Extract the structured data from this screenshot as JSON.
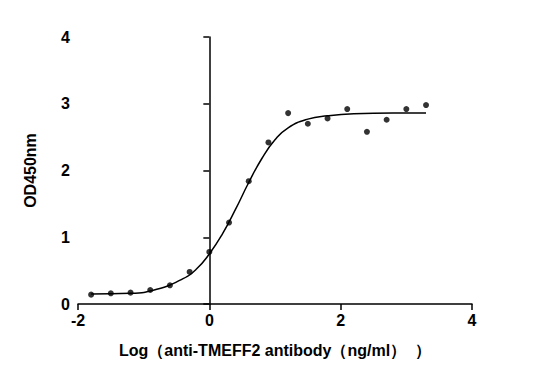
{
  "chart_data": {
    "type": "scatter",
    "x_label": "Log（anti-TMEFF2 antibody（ng/ml）  ）",
    "y_label": "OD450nm",
    "xlim": [
      -2,
      4
    ],
    "xticks": [
      -2,
      0,
      2,
      4
    ],
    "ylim": [
      0,
      4
    ],
    "yticks": [
      0,
      1,
      2,
      3,
      4
    ],
    "grid": false,
    "series": [
      {
        "type": "scatter",
        "color": "#000000",
        "marker": "circle",
        "x": [
          -1.8,
          -1.5,
          -1.2,
          -0.9,
          -0.6,
          -0.3,
          0.0,
          0.3,
          0.6,
          0.9,
          1.2,
          1.5,
          1.8,
          2.1,
          2.4,
          2.7,
          3.0,
          3.3
        ],
        "values": [
          0.14,
          0.16,
          0.17,
          0.21,
          0.28,
          0.48,
          0.78,
          1.22,
          1.84,
          2.42,
          2.86,
          2.7,
          2.78,
          2.92,
          2.58,
          2.76,
          2.92,
          2.98
        ]
      },
      {
        "type": "line",
        "color": "#000000",
        "line_style": "solid",
        "x": [
          -1.8,
          -1.2,
          -0.8,
          -0.4,
          -0.2,
          0.0,
          0.2,
          0.4,
          0.6,
          0.8,
          1.0,
          1.2,
          1.5,
          1.8,
          2.2,
          2.8,
          3.3
        ],
        "values": [
          0.15,
          0.16,
          0.22,
          0.38,
          0.52,
          0.75,
          1.05,
          1.42,
          1.82,
          2.18,
          2.46,
          2.64,
          2.77,
          2.82,
          2.85,
          2.86,
          2.86
        ]
      }
    ]
  }
}
